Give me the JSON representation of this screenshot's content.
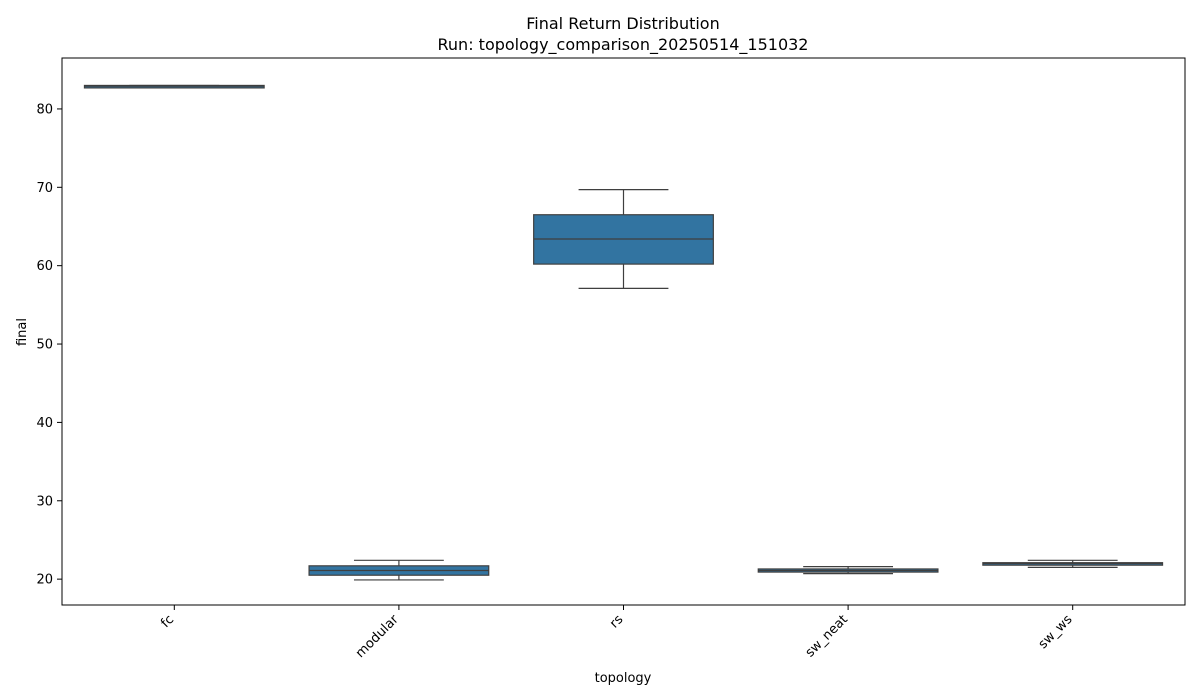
{
  "chart_data": {
    "type": "box",
    "title": "Final Return Distribution",
    "subtitle": "Run: topology_comparison_20250514_151032",
    "xlabel": "topology",
    "ylabel": "final",
    "ylim": [
      16.7,
      86.5
    ],
    "yticks": [
      20,
      30,
      40,
      50,
      60,
      70,
      80
    ],
    "grid": false,
    "box_color": "#3274a1",
    "categories": [
      "fc",
      "modular",
      "rs",
      "sw_neat",
      "sw_ws"
    ],
    "boxes": [
      {
        "category": "fc",
        "whisker_low": 82.8,
        "q1": 82.8,
        "median": 82.9,
        "q3": 83.0,
        "whisker_high": 83.0
      },
      {
        "category": "modular",
        "whisker_low": 19.9,
        "q1": 20.5,
        "median": 21.1,
        "q3": 21.7,
        "whisker_high": 22.4
      },
      {
        "category": "rs",
        "whisker_low": 57.1,
        "q1": 60.2,
        "median": 63.4,
        "q3": 66.5,
        "whisker_high": 69.7
      },
      {
        "category": "sw_neat",
        "whisker_low": 20.7,
        "q1": 20.9,
        "median": 21.1,
        "q3": 21.3,
        "whisker_high": 21.6
      },
      {
        "category": "sw_ws",
        "whisker_low": 21.5,
        "q1": 21.8,
        "median": 22.0,
        "q3": 22.1,
        "whisker_high": 22.4
      }
    ]
  }
}
